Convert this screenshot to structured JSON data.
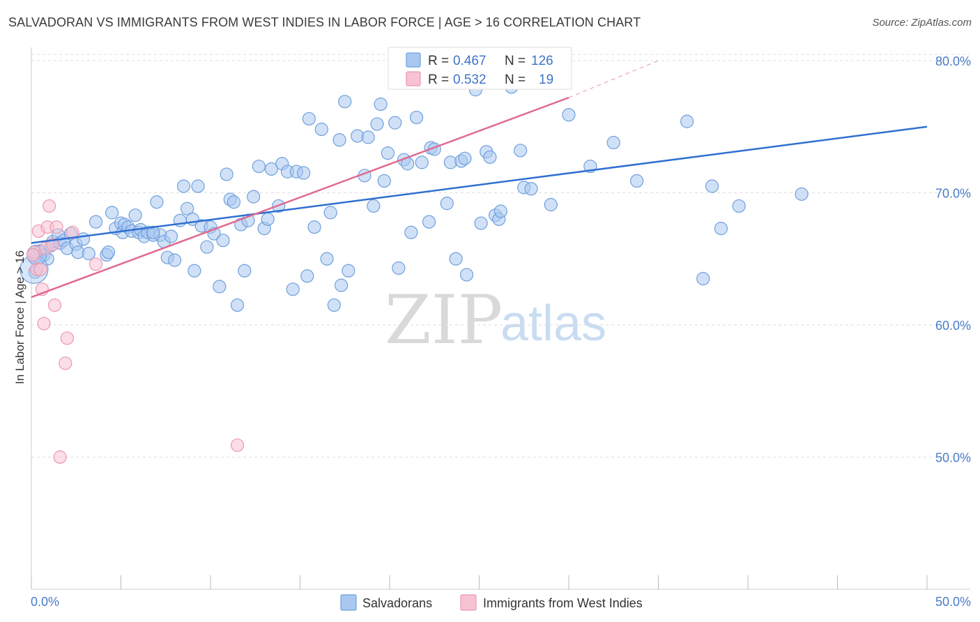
{
  "title": "SALVADORAN VS IMMIGRANTS FROM WEST INDIES IN LABOR FORCE | AGE > 16 CORRELATION CHART",
  "source": "Source: ZipAtlas.com",
  "watermark": {
    "zip": "ZIP",
    "atlas": "atlas"
  },
  "colors": {
    "blue_fill": "#a9c8f0",
    "blue_stroke": "#6f9fdc",
    "blue_line": "#2f6fd1",
    "pink_fill": "#f7c3d3",
    "pink_stroke": "#ec97b2",
    "pink_line": "#e0698f",
    "tick_text": "#4a7cc7",
    "grid": "#dddddd"
  },
  "legend": {
    "rows": [
      {
        "r_label": "R =",
        "r_value": "0.467",
        "n_label": "N =",
        "n_value": "126"
      },
      {
        "r_label": "R =",
        "r_value": "0.532",
        "n_label": "N =",
        "n_value": "19"
      }
    ]
  },
  "chart_data": {
    "type": "scatter",
    "title": "SALVADORAN VS IMMIGRANTS FROM WEST INDIES IN LABOR FORCE | AGE > 16 CORRELATION CHART",
    "xlabel": "",
    "ylabel": "In Labor Force | Age > 16",
    "xlim": [
      0,
      50
    ],
    "ylim": [
      40,
      81
    ],
    "x_tick_labels": [
      "0.0%",
      "50.0%"
    ],
    "y_ticks": [
      50,
      60,
      70,
      80
    ],
    "y_tick_labels": [
      "50.0%",
      "60.0%",
      "70.0%",
      "80.0%"
    ],
    "grid": true,
    "legend_position": "bottom",
    "series": [
      {
        "name": "Salvadorans",
        "color": "#a9c8f0",
        "R": 0.467,
        "N": 126,
        "trend": {
          "x": [
            0,
            50
          ],
          "y": [
            66.2,
            75.0
          ]
        },
        "points": [
          [
            0.3,
            65.2
          ],
          [
            0.5,
            65.6
          ],
          [
            0.7,
            65.3
          ],
          [
            0.9,
            65.0
          ],
          [
            1.1,
            66.0
          ],
          [
            1.2,
            66.3
          ],
          [
            1.5,
            66.8
          ],
          [
            1.6,
            66.2
          ],
          [
            1.8,
            66.4
          ],
          [
            2.0,
            65.8
          ],
          [
            2.2,
            66.9
          ],
          [
            2.5,
            66.1
          ],
          [
            2.6,
            65.5
          ],
          [
            2.9,
            66.5
          ],
          [
            3.2,
            65.4
          ],
          [
            3.6,
            67.8
          ],
          [
            4.2,
            65.3
          ],
          [
            4.3,
            65.5
          ],
          [
            4.5,
            68.5
          ],
          [
            4.7,
            67.3
          ],
          [
            5.0,
            67.7
          ],
          [
            5.1,
            67.0
          ],
          [
            5.2,
            67.6
          ],
          [
            5.4,
            67.4
          ],
          [
            5.6,
            67.1
          ],
          [
            5.8,
            68.3
          ],
          [
            6.0,
            67.0
          ],
          [
            6.1,
            67.2
          ],
          [
            6.3,
            66.7
          ],
          [
            6.5,
            67.0
          ],
          [
            6.8,
            66.8
          ],
          [
            7.0,
            69.3
          ],
          [
            7.2,
            66.8
          ],
          [
            7.4,
            66.3
          ],
          [
            7.6,
            65.1
          ],
          [
            7.8,
            66.7
          ],
          [
            8.0,
            64.9
          ],
          [
            8.3,
            67.9
          ],
          [
            8.5,
            70.5
          ],
          [
            8.7,
            68.8
          ],
          [
            9.0,
            68.0
          ],
          [
            9.1,
            64.1
          ],
          [
            9.3,
            70.5
          ],
          [
            9.5,
            67.5
          ],
          [
            9.8,
            65.9
          ],
          [
            10.0,
            67.4
          ],
          [
            10.2,
            66.9
          ],
          [
            10.5,
            62.9
          ],
          [
            10.7,
            66.4
          ],
          [
            10.9,
            71.4
          ],
          [
            11.1,
            69.5
          ],
          [
            11.3,
            69.3
          ],
          [
            11.5,
            61.5
          ],
          [
            11.7,
            67.6
          ],
          [
            11.9,
            64.1
          ],
          [
            12.1,
            67.9
          ],
          [
            12.4,
            69.7
          ],
          [
            12.7,
            72.0
          ],
          [
            13.0,
            67.3
          ],
          [
            13.2,
            68.0
          ],
          [
            13.4,
            71.8
          ],
          [
            13.8,
            69.0
          ],
          [
            14.0,
            72.2
          ],
          [
            14.3,
            71.6
          ],
          [
            14.6,
            62.7
          ],
          [
            14.8,
            71.6
          ],
          [
            15.2,
            71.5
          ],
          [
            15.4,
            63.7
          ],
          [
            15.5,
            75.6
          ],
          [
            15.8,
            67.4
          ],
          [
            16.2,
            74.8
          ],
          [
            16.5,
            65.0
          ],
          [
            16.7,
            68.5
          ],
          [
            16.9,
            61.5
          ],
          [
            17.2,
            74.0
          ],
          [
            17.3,
            63.0
          ],
          [
            17.5,
            76.9
          ],
          [
            17.7,
            64.1
          ],
          [
            18.2,
            74.3
          ],
          [
            18.6,
            71.3
          ],
          [
            18.8,
            74.2
          ],
          [
            19.1,
            69.0
          ],
          [
            19.3,
            75.2
          ],
          [
            19.5,
            76.7
          ],
          [
            19.7,
            70.9
          ],
          [
            19.9,
            73.0
          ],
          [
            20.3,
            75.3
          ],
          [
            20.5,
            64.3
          ],
          [
            20.8,
            72.5
          ],
          [
            21.0,
            72.2
          ],
          [
            21.2,
            67.0
          ],
          [
            21.5,
            75.7
          ],
          [
            21.8,
            72.3
          ],
          [
            22.2,
            67.8
          ],
          [
            22.3,
            73.4
          ],
          [
            22.5,
            73.3
          ],
          [
            23.2,
            69.2
          ],
          [
            23.4,
            72.3
          ],
          [
            23.7,
            65.0
          ],
          [
            24.0,
            72.4
          ],
          [
            24.2,
            72.6
          ],
          [
            24.3,
            63.8
          ],
          [
            24.8,
            77.8
          ],
          [
            25.1,
            67.7
          ],
          [
            25.4,
            73.1
          ],
          [
            25.6,
            72.7
          ],
          [
            25.9,
            68.3
          ],
          [
            26.1,
            68.0
          ],
          [
            26.2,
            68.6
          ],
          [
            26.8,
            78.0
          ],
          [
            27.3,
            73.2
          ],
          [
            27.5,
            70.4
          ],
          [
            27.9,
            70.3
          ],
          [
            29.0,
            69.1
          ],
          [
            30.0,
            75.9
          ],
          [
            31.2,
            72.0
          ],
          [
            32.5,
            73.8
          ],
          [
            33.8,
            70.9
          ],
          [
            36.6,
            75.4
          ],
          [
            37.5,
            63.5
          ],
          [
            38.0,
            70.5
          ],
          [
            38.5,
            67.3
          ],
          [
            39.5,
            69.0
          ],
          [
            43.0,
            69.9
          ],
          [
            0.2,
            64.0
          ],
          [
            6.8,
            67.0
          ]
        ]
      },
      {
        "name": "Immigrants from West Indies",
        "color": "#f7c3d3",
        "R": 0.532,
        "N": 19,
        "trend": {
          "x": [
            0,
            30
          ],
          "y": [
            62.1,
            77.2
          ]
        },
        "trend_dashed": {
          "x": [
            30,
            35
          ],
          "y": [
            77.2,
            80.0
          ]
        },
        "points": [
          [
            0.2,
            65.5
          ],
          [
            0.3,
            64.2
          ],
          [
            0.4,
            67.1
          ],
          [
            0.5,
            64.2
          ],
          [
            0.6,
            62.7
          ],
          [
            0.7,
            60.1
          ],
          [
            0.9,
            67.4
          ],
          [
            1.0,
            69.0
          ],
          [
            1.3,
            61.5
          ],
          [
            1.4,
            67.4
          ],
          [
            1.6,
            50.0
          ],
          [
            1.9,
            57.1
          ],
          [
            2.0,
            59.0
          ],
          [
            2.3,
            67.0
          ],
          [
            3.6,
            64.6
          ],
          [
            11.5,
            50.9
          ],
          [
            0.1,
            65.3
          ],
          [
            0.8,
            65.8
          ],
          [
            1.2,
            66.1
          ]
        ]
      }
    ]
  }
}
